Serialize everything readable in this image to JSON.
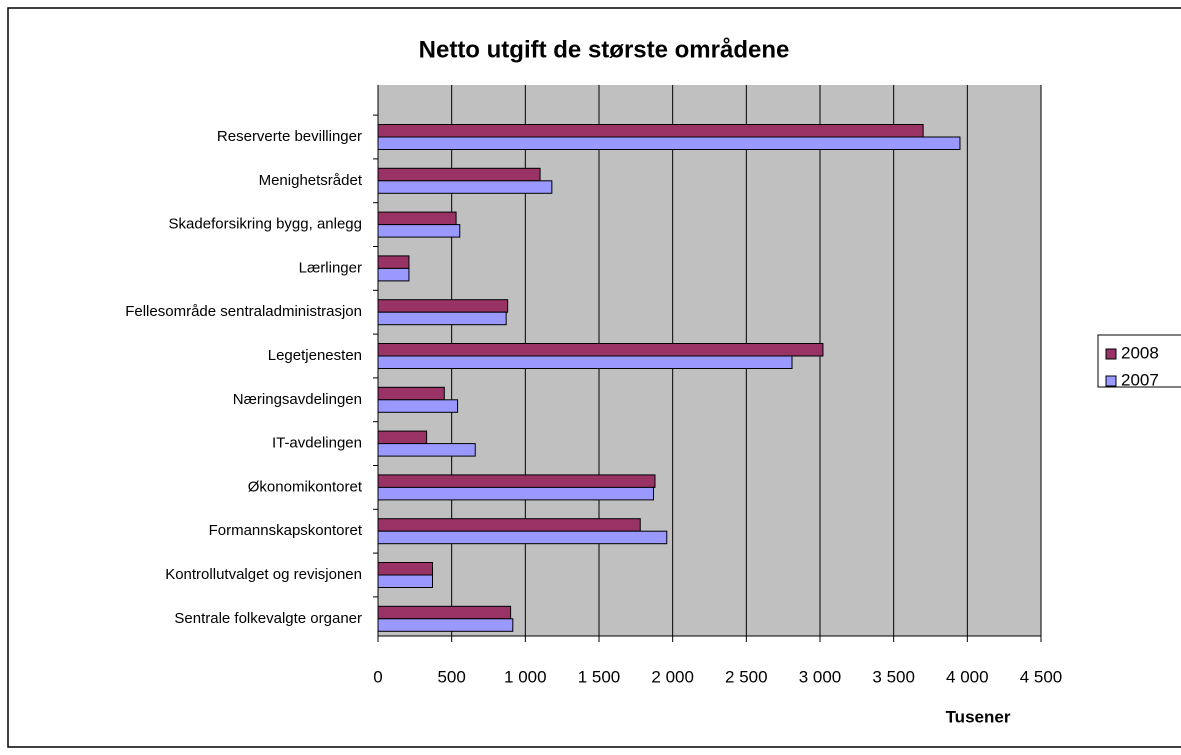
{
  "chart_data": {
    "type": "bar",
    "orientation": "horizontal",
    "title": "Netto utgift de største områdene",
    "x_label": "Tusener",
    "categories": [
      "Reserverte bevillinger",
      "Menighetsrådet",
      "Skadeforsikring bygg, anlegg",
      "Lærlinger",
      "Fellesområde sentraladministrasjon",
      "Legetjenesten",
      "Næringsavdelingen",
      "IT-avdelingen",
      "Økonomikontoret",
      "Formannskapskontoret",
      "Kontrollutvalget og revisjonen",
      "Sentrale folkevalgte organer"
    ],
    "series": [
      {
        "name": "2008",
        "color": "#993366",
        "values": [
          3700,
          1100,
          530,
          210,
          880,
          3020,
          450,
          330,
          1880,
          1780,
          370,
          900
        ]
      },
      {
        "name": "2007",
        "color": "#9999ff",
        "values": [
          3950,
          1180,
          555,
          210,
          870,
          2810,
          540,
          660,
          1870,
          1960,
          370,
          915
        ]
      }
    ],
    "xlim": [
      0,
      4500
    ],
    "xticks": [
      0,
      500,
      {
        "value": 1000,
        "label": "1 000"
      },
      {
        "value": 1500,
        "label": "1 500"
      },
      {
        "value": 2000,
        "label": "2 000"
      },
      {
        "value": 2500,
        "label": "2 500"
      },
      {
        "value": 3000,
        "label": "3 000"
      },
      {
        "value": 3500,
        "label": "3 500"
      },
      {
        "value": 4000,
        "label": "4 000"
      },
      {
        "value": 4500,
        "label": "4 500"
      }
    ],
    "grid": true,
    "legend": "right"
  }
}
